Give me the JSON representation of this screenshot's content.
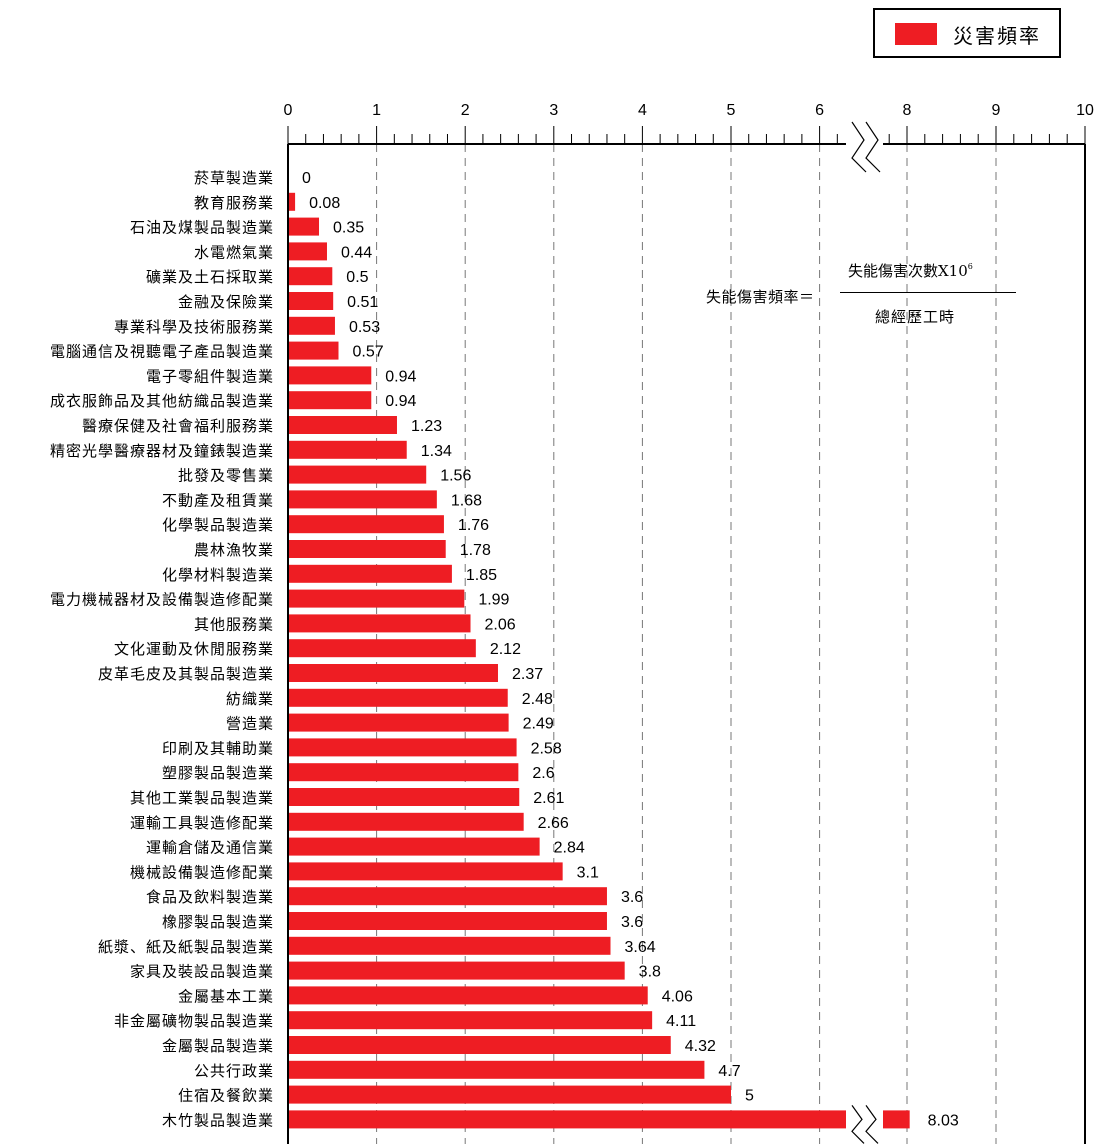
{
  "legend": {
    "label": "災害頻率",
    "color": "#ee1d23"
  },
  "formula": {
    "left": "失能傷害頻率＝",
    "numerator_text": "失能傷害次數X10",
    "numerator_exp": "6",
    "denominator": "總經歷工時"
  },
  "chart_data": {
    "type": "bar",
    "orientation": "horizontal",
    "axis_break": [
      6.3,
      7.7
    ],
    "xlim": [
      0,
      10
    ],
    "xticks": [
      0,
      1,
      2,
      3,
      4,
      5,
      6,
      8,
      9,
      10
    ],
    "bar_color": "#ee1d23",
    "grid": "dashed vertical",
    "series": [
      {
        "name": "災害頻率",
        "categories": [
          "菸草製造業",
          "教育服務業",
          "石油及煤製品製造業",
          "水電燃氣業",
          "礦業及土石採取業",
          "金融及保險業",
          "專業科學及技術服務業",
          "電腦通信及視聽電子產品製造業",
          "電子零組件製造業",
          "成衣服飾品及其他紡織品製造業",
          "醫療保健及社會福利服務業",
          "精密光學醫療器材及鐘錶製造業",
          "批發及零售業",
          "不動產及租賃業",
          "化學製品製造業",
          "農林漁牧業",
          "化學材料製造業",
          "電力機械器材及設備製造修配業",
          "其他服務業",
          "文化運動及休閒服務業",
          "皮革毛皮及其製品製造業",
          "紡織業",
          "營造業",
          "印刷及其輔助業",
          "塑膠製品製造業",
          "其他工業製品製造業",
          "運輸工具製造修配業",
          "運輸倉儲及通信業",
          "機械設備製造修配業",
          "食品及飲料製造業",
          "橡膠製品製造業",
          "紙漿、紙及紙製品製造業",
          "家具及裝設品製造業",
          "金屬基本工業",
          "非金屬礦物製品製造業",
          "金屬製品製造業",
          "公共行政業",
          "住宿及餐飲業",
          "木竹製品製造業"
        ],
        "values": [
          0,
          0.08,
          0.35,
          0.44,
          0.5,
          0.51,
          0.53,
          0.57,
          0.94,
          0.94,
          1.23,
          1.34,
          1.56,
          1.68,
          1.76,
          1.78,
          1.85,
          1.99,
          2.06,
          2.12,
          2.37,
          2.48,
          2.49,
          2.58,
          2.6,
          2.61,
          2.66,
          2.84,
          3.1,
          3.6,
          3.6,
          3.64,
          3.8,
          4.06,
          4.11,
          4.32,
          4.7,
          5,
          8.03
        ],
        "labels": [
          "0",
          "0.08",
          "0.35",
          "0.44",
          "0.5",
          "0.51",
          "0.53",
          "0.57",
          "0.94",
          "0.94",
          "1.23",
          "1.34",
          "1.56",
          "1.68",
          "1.76",
          "1.78",
          "1.85",
          "1.99",
          "2.06",
          "2.12",
          "2.37",
          "2.48",
          "2.49",
          "2.58",
          "2.6",
          "2.61",
          "2.66",
          "2.84",
          "3.1",
          "3.6",
          "3.6",
          "3.64",
          "3.8",
          "4.06",
          "4.11",
          "4.32",
          "4.7",
          "5",
          "8.03"
        ]
      }
    ]
  }
}
